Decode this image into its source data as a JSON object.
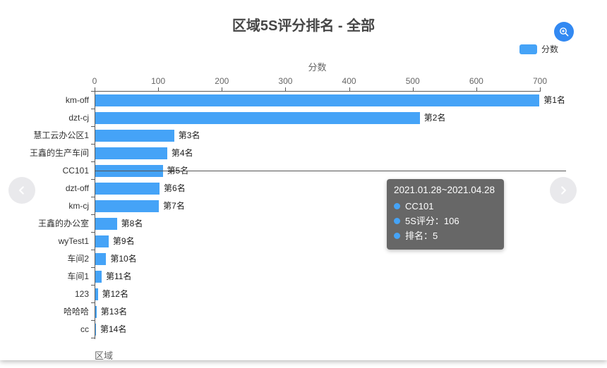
{
  "title": "区域5S评分排名 - 全部",
  "toolbar": {
    "zoom_button_icon": "magnifier-plus"
  },
  "legend": {
    "position": "top-right",
    "items": [
      {
        "label": "分数",
        "color": "#45a3f7"
      }
    ]
  },
  "chart_data": {
    "type": "bar",
    "orientation": "horizontal",
    "title": "区域5S评分排名 - 全部",
    "xlabel": "分数",
    "ylabel": "区域",
    "xlim": [
      0,
      700
    ],
    "x_ticks": [
      0,
      100,
      200,
      300,
      400,
      500,
      600,
      700
    ],
    "grid": false,
    "legend_entries": [
      "分数"
    ],
    "bar_color": "#45a3f7",
    "categories": [
      "km-off",
      "dzt-cj",
      "慧工云办公区1",
      "王鑫的生产车间",
      "CC101",
      "dzt-off",
      "km-cj",
      "王鑫的办公室",
      "wyTest1",
      "车间2",
      "车间1",
      "123",
      "哈哈哈",
      "cc"
    ],
    "values": [
      698,
      510,
      124,
      113,
      106,
      101,
      100,
      34,
      21,
      17,
      10,
      4,
      2,
      1
    ],
    "bar_labels": [
      "第1名",
      "第2名",
      "第3名",
      "第4名",
      "第5名",
      "第6名",
      "第7名",
      "第8名",
      "第9名",
      "第10名",
      "第11名",
      "第12名",
      "第13名",
      "第14名"
    ]
  },
  "tooltip": {
    "title": "2021.01.28~2021.04.28",
    "dot_color": "#45a3f7",
    "items": [
      {
        "label": "CC101"
      },
      {
        "label": "5S评分：106"
      },
      {
        "label": "排名：5"
      }
    ]
  },
  "nav": {
    "prev_icon": "chevron-left",
    "next_icon": "chevron-right"
  }
}
